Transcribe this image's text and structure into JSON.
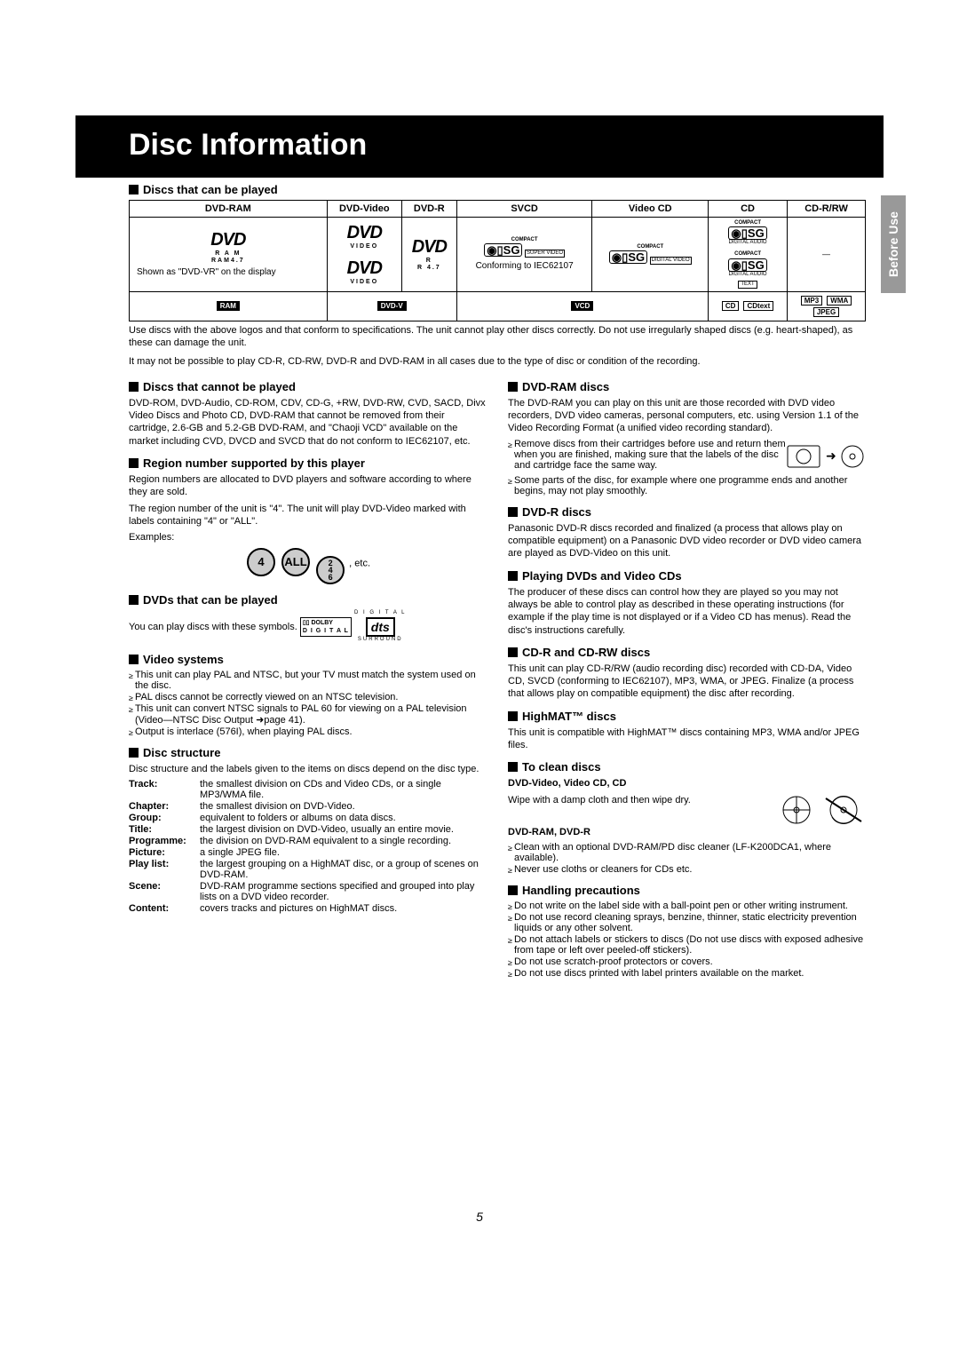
{
  "page_number": "5",
  "title": "Disc Information",
  "side_tab": "Before Use",
  "table": {
    "heading": "Discs that can be played",
    "headers": [
      "DVD-RAM",
      "DVD-Video",
      "DVD-R",
      "SVCD",
      "Video CD",
      "CD",
      "CD-R/RW"
    ],
    "row1": {
      "dvdram_note": "Shown as \"DVD-VR\" on the display",
      "dvdram_sub1": "R A M",
      "dvdram_sub2": "RAM4.7",
      "dvdvideo_sub": "VIDEO",
      "dvdr_sub1": "R",
      "dvdr_sub2": "R 4.7",
      "svcd_note": "Conforming to IEC62107",
      "svcd_sub": "SUPER VIDEO",
      "vcd_sub": "DIGITAL VIDEO",
      "cd_sub1": "DIGITAL AUDIO",
      "cd_sub2": "TEXT",
      "cdrrw": "—",
      "compact": "COMPACT"
    },
    "row2": {
      "badges": {
        "ram": "RAM",
        "dvdv": "DVD-V",
        "vcd": "VCD",
        "cd": "CD",
        "cdtext": "CDtext",
        "mp3": "MP3",
        "wma": "WMA",
        "jpeg": "JPEG"
      }
    },
    "note1": "Use discs with the above logos and that conform to specifications. The unit cannot play other discs correctly. Do not use irregularly shaped discs (e.g. heart-shaped), as these can damage the unit.",
    "note2": "It may not be possible to play CD-R, CD-RW, DVD-R and DVD-RAM in all cases due to the type of disc or condition of the recording."
  },
  "left": {
    "cannot_play": {
      "heading": "Discs that cannot be played",
      "text": "DVD-ROM, DVD-Audio, CD-ROM, CDV, CD-G, +RW, DVD-RW, CVD, SACD, Divx Video Discs and Photo CD, DVD-RAM that cannot be removed from their cartridge, 2.6-GB and 5.2-GB DVD-RAM, and \"Chaoji VCD\" available on the market including CVD, DVCD and SVCD that do not conform to IEC62107, etc."
    },
    "region": {
      "heading": "Region number supported by this player",
      "p1": "Region numbers are allocated to DVD players and software according to where they are sold.",
      "p2": "The region number of the unit is \"4\". The unit will play DVD-Video marked with labels containing \"4\" or \"ALL\".",
      "examples_label": "Examples:",
      "r1": "4",
      "r2": "ALL",
      "r3_a": "2",
      "r3_b": "4",
      "r3_c": "6",
      "etc": ", etc."
    },
    "dvds_play": {
      "heading": "DVDs that can be played",
      "text": "You can play discs with these symbols.",
      "dolby": "DOLBY",
      "digital": "D I G I T A L",
      "dts": "dts",
      "surround": "SURROUND"
    },
    "video": {
      "heading": "Video systems",
      "b1": "This unit can play PAL and NTSC, but your TV must match the system used on the disc.",
      "b2": "PAL discs cannot be correctly viewed on an NTSC television.",
      "b3": "This unit can convert NTSC signals to PAL 60 for viewing on a PAL television (Video—NTSC Disc Output ➜page 41).",
      "b4": "Output is interlace (576I), when playing PAL discs."
    },
    "structure": {
      "heading": "Disc structure",
      "intro": "Disc structure and the labels given to the items on discs depend on the disc type.",
      "rows": [
        {
          "t": "Track:",
          "d": "the smallest division on CDs and Video CDs, or a single MP3/WMA file."
        },
        {
          "t": "Chapter:",
          "d": "the smallest division on DVD-Video."
        },
        {
          "t": "Group:",
          "d": "equivalent to folders or albums on data discs."
        },
        {
          "t": "Title:",
          "d": "the largest division on DVD-Video, usually an entire movie."
        },
        {
          "t": "Programme:",
          "d": "the division on DVD-RAM equivalent to a single recording."
        },
        {
          "t": "Picture:",
          "d": "a single JPEG file."
        },
        {
          "t": "Play list:",
          "d": "the largest grouping on a HighMAT disc, or a group of scenes on DVD-RAM."
        },
        {
          "t": "Scene:",
          "d": "DVD-RAM programme sections specified and grouped into play lists on a DVD video recorder."
        },
        {
          "t": "Content:",
          "d": "covers tracks and pictures on HighMAT discs."
        }
      ]
    }
  },
  "right": {
    "dvdram": {
      "heading": "DVD-RAM discs",
      "p1": "The DVD-RAM you can play on this unit are those recorded with DVD video recorders, DVD video cameras, personal computers, etc. using Version 1.1 of the Video Recording Format (a unified video recording standard).",
      "b1": "Remove discs from their cartridges before use and return them when you are finished, making sure that the labels of the disc and cartridge face the same way.",
      "b2": "Some parts of the disc, for example where one programme ends and another begins, may not play smoothly."
    },
    "dvdr": {
      "heading": "DVD-R discs",
      "p1": "Panasonic DVD-R discs recorded and finalized (a process that allows play on compatible equipment) on a Panasonic DVD video recorder or DVD video camera are played as DVD-Video on this unit."
    },
    "playing": {
      "heading": "Playing DVDs and Video CDs",
      "p1": "The producer of these discs can control how they are played so you may not always be able to control play as described in these operating instructions (for example if the play time is not displayed or if a Video CD has menus). Read the disc's instructions carefully."
    },
    "cdr": {
      "heading": "CD-R and CD-RW discs",
      "p1": "This unit can play CD-R/RW (audio recording disc) recorded with CD-DA, Video CD, SVCD (conforming to IEC62107), MP3, WMA, or JPEG. Finalize (a process that allows play on compatible equipment) the disc after recording."
    },
    "highmat": {
      "heading": "HighMAT™ discs",
      "p1": "This unit is compatible with HighMAT™ discs containing MP3, WMA and/or JPEG files."
    },
    "clean": {
      "heading": "To clean discs",
      "sub1": "DVD-Video, Video CD, CD",
      "p1": "Wipe with a damp cloth and then wipe dry.",
      "sub2": "DVD-RAM, DVD-R",
      "b1": "Clean with an optional DVD-RAM/PD disc cleaner (LF-K200DCA1, where available).",
      "b2": "Never use cloths or cleaners for CDs etc."
    },
    "handling": {
      "heading": "Handling precautions",
      "b1": "Do not write on the label side with a ball-point pen or other writing instrument.",
      "b2": "Do not use record cleaning sprays, benzine, thinner, static electricity prevention liquids or any other solvent.",
      "b3": "Do not attach labels or stickers to discs (Do not use discs with exposed adhesive from tape or left over peeled-off stickers).",
      "b4": "Do not use scratch-proof protectors or covers.",
      "b5": "Do not use discs printed with label printers available on the market."
    }
  }
}
